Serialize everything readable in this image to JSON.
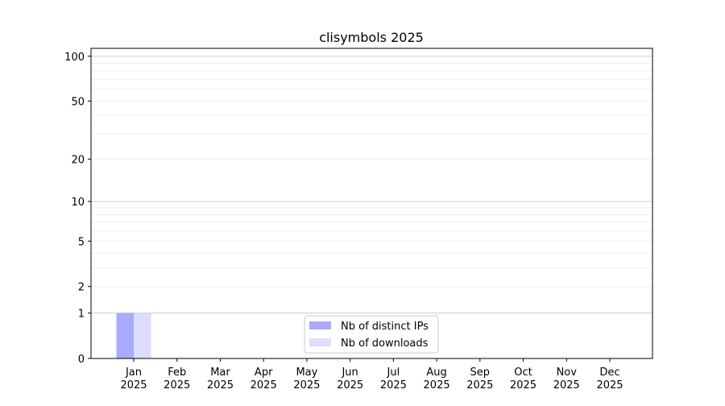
{
  "chart_data": {
    "type": "bar",
    "title": "clisymbols 2025",
    "xlabel": "",
    "ylabel": "",
    "y_scale": "log(1+y)",
    "ylim": [
      0,
      113
    ],
    "yticks": [
      0,
      1,
      2,
      5,
      10,
      20,
      50,
      100
    ],
    "grid": true,
    "legend_position": "lower-center",
    "categories": [
      "Jan\n2025",
      "Feb\n2025",
      "Mar\n2025",
      "Apr\n2025",
      "May\n2025",
      "Jun\n2025",
      "Jul\n2025",
      "Aug\n2025",
      "Sep\n2025",
      "Oct\n2025",
      "Nov\n2025",
      "Dec\n2025"
    ],
    "series": [
      {
        "name": "Nb of distinct IPs",
        "color": "#aaaaff",
        "values": [
          1,
          0,
          0,
          0,
          0,
          0,
          0,
          0,
          0,
          0,
          0,
          0
        ]
      },
      {
        "name": "Nb of downloads",
        "color": "#ddddff",
        "values": [
          1,
          0,
          0,
          0,
          0,
          0,
          0,
          0,
          0,
          0,
          0,
          0
        ]
      }
    ]
  }
}
